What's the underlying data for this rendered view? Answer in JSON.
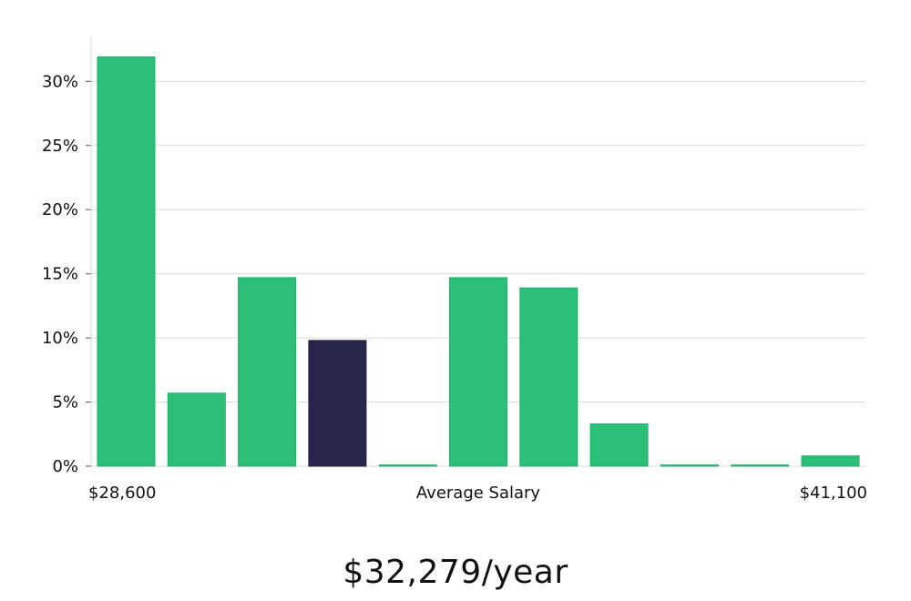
{
  "chart_data": {
    "type": "bar",
    "categories": [
      "1",
      "2",
      "3",
      "4",
      "5",
      "6",
      "7",
      "8",
      "9",
      "10",
      "11"
    ],
    "values": [
      31.9,
      5.7,
      14.7,
      9.8,
      0.1,
      14.7,
      13.9,
      3.3,
      0.1,
      0.1,
      0.8
    ],
    "highlight_index": 3,
    "ylim": [
      0,
      33.5
    ],
    "y_ticks": [
      0,
      5,
      10,
      15,
      20,
      25,
      30
    ],
    "y_tick_labels": [
      "0%",
      "5%",
      "10%",
      "15%",
      "20%",
      "25%",
      "30%"
    ],
    "x_min_label": "$28,600",
    "xlabel": "Average Salary",
    "x_max_label": "$41,100",
    "grid": true,
    "colors": {
      "bar": "#2bbf78",
      "highlight": "#28264a",
      "grid": "#d9d9d9",
      "axis": "#d9d9d9"
    }
  },
  "salary_display": "$32,279/year"
}
